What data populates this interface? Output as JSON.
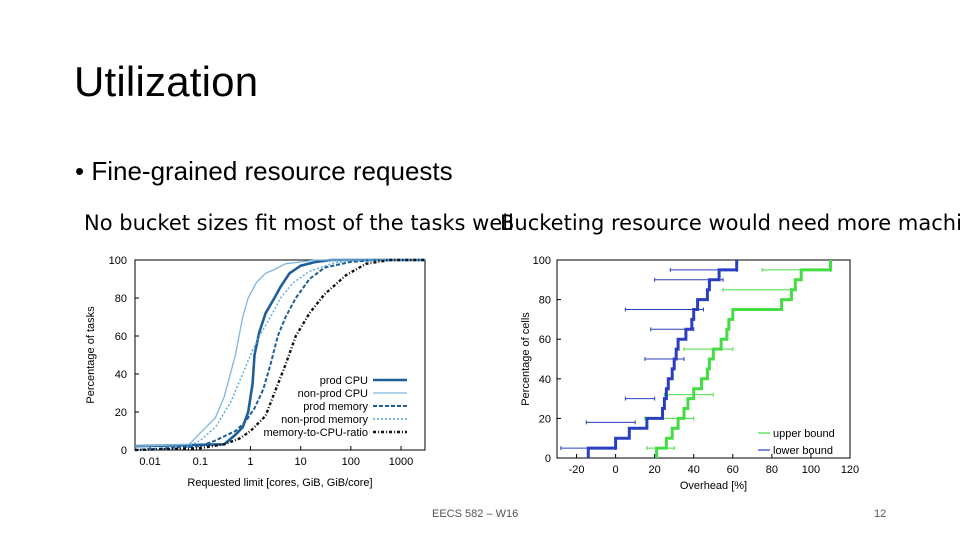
{
  "slide": {
    "title": "Utilization",
    "bullet": "• Fine-grained resource requests",
    "caption_left": "No bucket sizes fit most of the tasks well",
    "caption_right": "Bucketing resource would need more machines",
    "footer": "EECS 582 – W16",
    "page_number": "12"
  },
  "chart_data": [
    {
      "type": "line",
      "xlabel": "Requested limit [cores, GiB, GiB/core]",
      "ylabel": "Percentage of tasks",
      "x_scale": "log",
      "xlim": [
        0.005,
        3000
      ],
      "ylim": [
        0,
        100
      ],
      "x_ticks": [
        "0.01",
        "0.1",
        "1",
        "10",
        "100",
        "1000"
      ],
      "y_ticks": [
        "0",
        "20",
        "40",
        "60",
        "80",
        "100"
      ],
      "legend_position": "bottom-right",
      "grid": false,
      "series": [
        {
          "name": "prod CPU",
          "color": "#1f5f99",
          "style": "solid-thick",
          "points": [
            [
              0.005,
              2
            ],
            [
              0.3,
              3
            ],
            [
              0.5,
              8
            ],
            [
              0.7,
              12
            ],
            [
              0.9,
              20
            ],
            [
              1.1,
              35
            ],
            [
              1.2,
              50
            ],
            [
              1.5,
              62
            ],
            [
              2,
              72
            ],
            [
              3,
              80
            ],
            [
              4,
              86
            ],
            [
              6,
              93
            ],
            [
              10,
              97
            ],
            [
              20,
              99
            ],
            [
              40,
              100
            ],
            [
              3000,
              100
            ]
          ]
        },
        {
          "name": "non-prod CPU",
          "color": "#7fb7e0",
          "style": "solid-thin",
          "points": [
            [
              0.005,
              2
            ],
            [
              0.06,
              3
            ],
            [
              0.1,
              9
            ],
            [
              0.2,
              17
            ],
            [
              0.3,
              28
            ],
            [
              0.5,
              50
            ],
            [
              0.7,
              70
            ],
            [
              0.9,
              80
            ],
            [
              1.3,
              88
            ],
            [
              2,
              93
            ],
            [
              3,
              95
            ],
            [
              5,
              98
            ],
            [
              10,
              99
            ],
            [
              20,
              100
            ],
            [
              3000,
              100
            ]
          ]
        },
        {
          "name": "prod memory",
          "color": "#1f5f99",
          "style": "dashed",
          "points": [
            [
              0.005,
              0
            ],
            [
              0.1,
              2
            ],
            [
              0.2,
              5
            ],
            [
              0.5,
              10
            ],
            [
              0.8,
              15
            ],
            [
              1.2,
              22
            ],
            [
              1.8,
              32
            ],
            [
              2.5,
              45
            ],
            [
              3.5,
              60
            ],
            [
              5,
              70
            ],
            [
              8,
              80
            ],
            [
              15,
              90
            ],
            [
              30,
              96
            ],
            [
              100,
              99
            ],
            [
              300,
              100
            ],
            [
              3000,
              100
            ]
          ]
        },
        {
          "name": "non-prod memory",
          "color": "#5aa8d8",
          "style": "dotted",
          "points": [
            [
              0.005,
              0
            ],
            [
              0.05,
              1
            ],
            [
              0.1,
              5
            ],
            [
              0.2,
              12
            ],
            [
              0.4,
              25
            ],
            [
              0.7,
              40
            ],
            [
              1,
              50
            ],
            [
              1.5,
              60
            ],
            [
              2.5,
              70
            ],
            [
              4,
              80
            ],
            [
              7,
              88
            ],
            [
              15,
              94
            ],
            [
              40,
              98
            ],
            [
              100,
              100
            ],
            [
              3000,
              100
            ]
          ]
        },
        {
          "name": "memory-to-CPU-ratio",
          "color": "#111111",
          "style": "dash-dot",
          "points": [
            [
              0.005,
              0
            ],
            [
              0.1,
              1
            ],
            [
              0.3,
              3
            ],
            [
              0.6,
              6
            ],
            [
              1,
              10
            ],
            [
              2,
              18
            ],
            [
              3,
              30
            ],
            [
              5,
              45
            ],
            [
              8,
              60
            ],
            [
              15,
              72
            ],
            [
              30,
              82
            ],
            [
              80,
              92
            ],
            [
              200,
              98
            ],
            [
              600,
              100
            ],
            [
              3000,
              100
            ]
          ]
        }
      ]
    },
    {
      "type": "line",
      "xlabel": "Overhead [%]",
      "ylabel": "Percentage of cells",
      "xlim": [
        -30,
        120
      ],
      "ylim": [
        0,
        100
      ],
      "x_ticks": [
        "-20",
        "0",
        "20",
        "40",
        "60",
        "80",
        "100",
        "120"
      ],
      "y_ticks": [
        "0",
        "20",
        "40",
        "60",
        "80",
        "100"
      ],
      "legend_position": "bottom-right",
      "grid": false,
      "series": [
        {
          "name": "upper bound",
          "color": "#44dd44",
          "style": "step-thick",
          "points": [
            [
              21,
              0
            ],
            [
              21,
              5
            ],
            [
              26,
              5
            ],
            [
              26,
              10
            ],
            [
              29,
              10
            ],
            [
              29,
              15
            ],
            [
              32,
              15
            ],
            [
              32,
              20
            ],
            [
              35,
              20
            ],
            [
              35,
              25
            ],
            [
              37,
              25
            ],
            [
              37,
              30
            ],
            [
              40,
              30
            ],
            [
              40,
              35
            ],
            [
              44,
              35
            ],
            [
              44,
              40
            ],
            [
              47,
              40
            ],
            [
              47,
              45
            ],
            [
              48,
              45
            ],
            [
              48,
              50
            ],
            [
              50,
              50
            ],
            [
              50,
              55
            ],
            [
              54,
              55
            ],
            [
              54,
              60
            ],
            [
              57,
              60
            ],
            [
              57,
              65
            ],
            [
              58,
              65
            ],
            [
              58,
              70
            ],
            [
              60,
              70
            ],
            [
              60,
              75
            ],
            [
              85,
              75
            ],
            [
              85,
              80
            ],
            [
              90,
              80
            ],
            [
              90,
              85
            ],
            [
              92,
              85
            ],
            [
              92,
              90
            ],
            [
              95,
              90
            ],
            [
              95,
              95
            ],
            [
              110,
              95
            ],
            [
              110,
              100
            ]
          ],
          "error_bars": [
            [
              22,
              5,
              16,
              30
            ],
            [
              28,
              20,
              15,
              40
            ],
            [
              38,
              32,
              25,
              50
            ],
            [
              50,
              55,
              35,
              60
            ],
            [
              70,
              85,
              55,
              90
            ],
            [
              95,
              95,
              75,
              110
            ]
          ]
        },
        {
          "name": "lower bound",
          "color": "#2a3fbf",
          "style": "step-thick",
          "points": [
            [
              -14,
              0
            ],
            [
              -14,
              5
            ],
            [
              0,
              5
            ],
            [
              0,
              10
            ],
            [
              7,
              10
            ],
            [
              7,
              15
            ],
            [
              16,
              15
            ],
            [
              16,
              20
            ],
            [
              24,
              20
            ],
            [
              24,
              25
            ],
            [
              25,
              25
            ],
            [
              25,
              30
            ],
            [
              26,
              30
            ],
            [
              26,
              35
            ],
            [
              27,
              35
            ],
            [
              27,
              40
            ],
            [
              29,
              40
            ],
            [
              29,
              45
            ],
            [
              30,
              45
            ],
            [
              30,
              50
            ],
            [
              31,
              50
            ],
            [
              31,
              55
            ],
            [
              32,
              55
            ],
            [
              32,
              60
            ],
            [
              36,
              60
            ],
            [
              36,
              65
            ],
            [
              39,
              65
            ],
            [
              39,
              70
            ],
            [
              40,
              70
            ],
            [
              40,
              75
            ],
            [
              42,
              75
            ],
            [
              42,
              80
            ],
            [
              47,
              80
            ],
            [
              47,
              85
            ],
            [
              48,
              85
            ],
            [
              48,
              90
            ],
            [
              53,
              90
            ],
            [
              53,
              95
            ],
            [
              62,
              95
            ],
            [
              62,
              100
            ]
          ],
          "error_bars": [
            [
              -14,
              5,
              -28,
              0
            ],
            [
              0,
              18,
              -15,
              10
            ],
            [
              10,
              30,
              5,
              20
            ],
            [
              20,
              50,
              15,
              35
            ],
            [
              28,
              65,
              18,
              40
            ],
            [
              35,
              75,
              5,
              45
            ],
            [
              45,
              90,
              20,
              55
            ],
            [
              55,
              95,
              28,
              62
            ]
          ]
        }
      ]
    }
  ]
}
